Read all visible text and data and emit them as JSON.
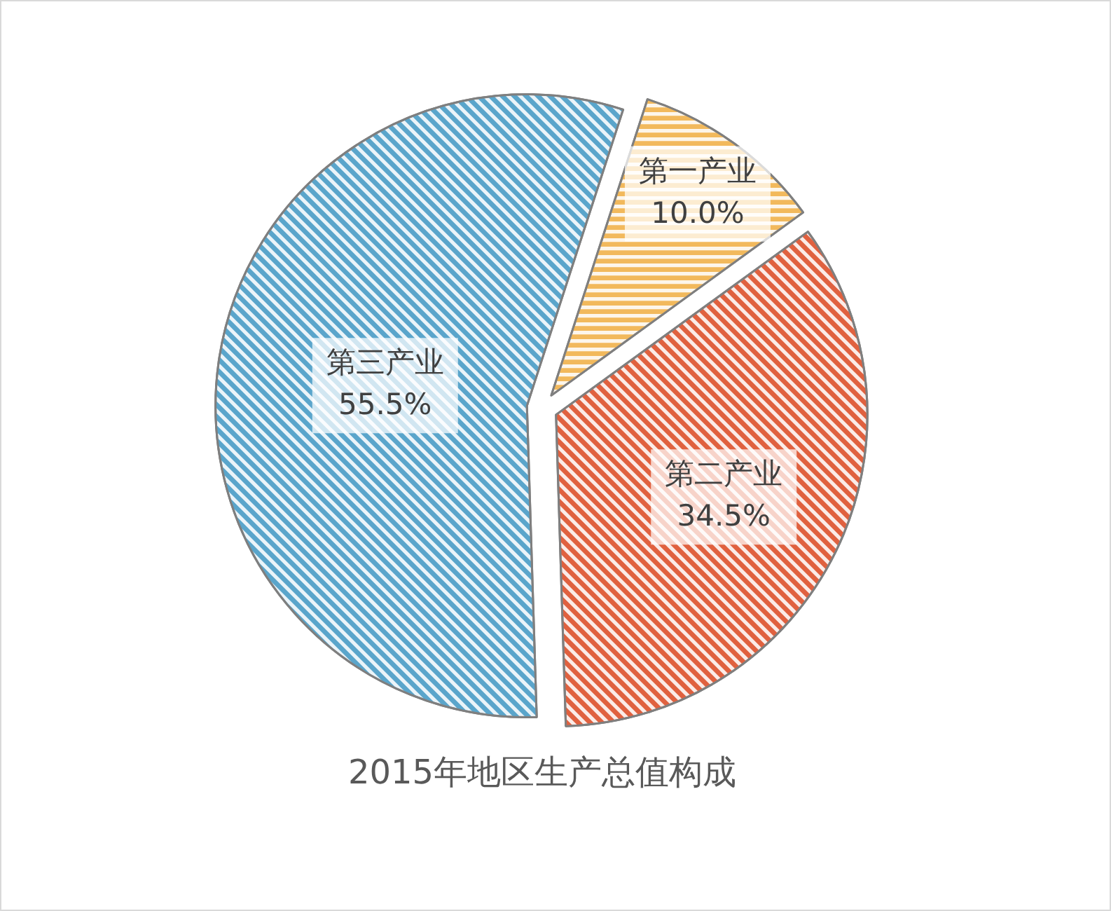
{
  "chart_data": {
    "type": "pie",
    "title": "2015年地区生产总值构成",
    "categories": [
      "第一产业",
      "第二产业",
      "第三产业"
    ],
    "values": [
      10.0,
      34.5,
      55.5
    ],
    "value_labels": [
      "10.0%",
      "34.5%",
      "55.5%"
    ],
    "colors": [
      "#f2b95c",
      "#e0613f",
      "#5aa5cb"
    ]
  }
}
